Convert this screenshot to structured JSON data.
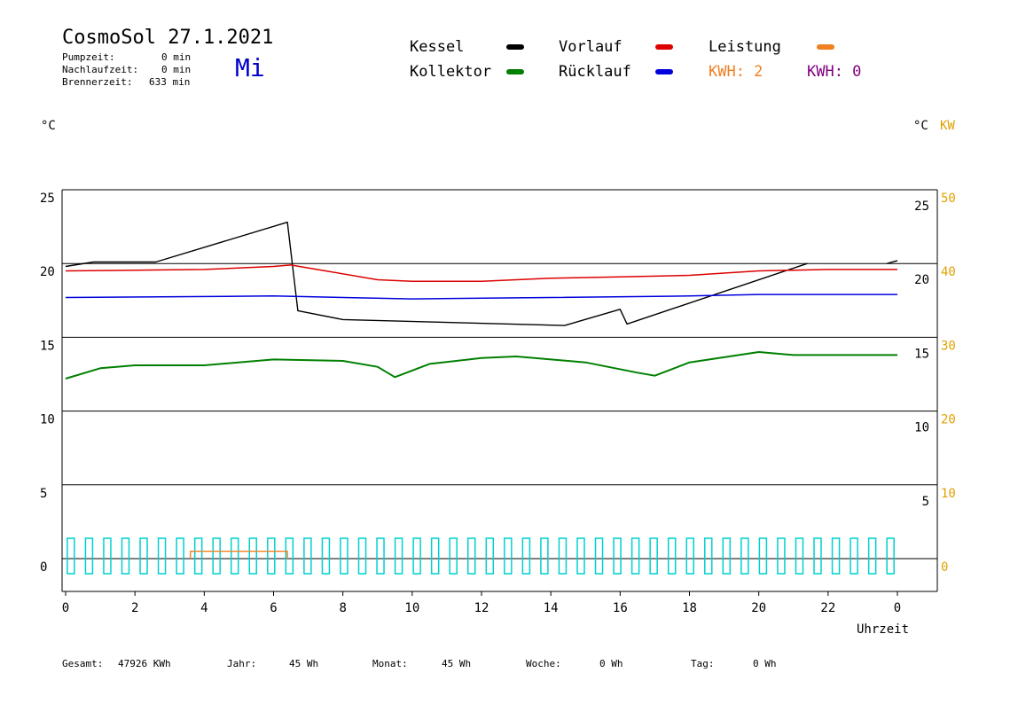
{
  "header": {
    "title": "CosmoSol 27.1.2021",
    "weekday": "Mi",
    "weekday_color": "#0000cc",
    "info": [
      {
        "label": "Pumpzeit:",
        "value": "0 min"
      },
      {
        "label": "Nachlaufzeit:",
        "value": "0 min"
      },
      {
        "label": "Brennerzeit:",
        "value": "633 min"
      }
    ]
  },
  "legend": {
    "kessel": {
      "label": "Kessel",
      "color": "#000000"
    },
    "kollektor": {
      "label": "Kollektor",
      "color": "#008000"
    },
    "vorlauf": {
      "label": "Vorlauf",
      "color": "#dd0000"
    },
    "ruecklauf": {
      "label": "Rücklauf",
      "color": "#0000dd"
    },
    "leistung": {
      "label": "Leistung",
      "color": "#f08020"
    },
    "kwh_orange": "KWH: 2",
    "kwh_purple": "KWH: 0",
    "kwh_purple_color": "#800080"
  },
  "axes": {
    "left_unit": "°C",
    "right_unit_c": "°C",
    "right_unit_kw": "KW",
    "x_label": "Uhrzeit",
    "left_ticks": [
      "25",
      "20",
      "15",
      "10",
      "5",
      "0"
    ],
    "right_c_ticks": [
      "25",
      "20",
      "15",
      "10",
      "5"
    ],
    "right_kw_ticks": [
      "50",
      "40",
      "30",
      "20",
      "10",
      "0"
    ],
    "x_ticks": [
      "0",
      "2",
      "4",
      "6",
      "8",
      "10",
      "12",
      "14",
      "16",
      "18",
      "20",
      "22",
      "0"
    ]
  },
  "footer": [
    {
      "label": "Gesamt:",
      "value": "47926 KWh"
    },
    {
      "label": "Jahr:",
      "value": "45 Wh"
    },
    {
      "label": "Monat:",
      "value": "45 Wh"
    },
    {
      "label": "Woche:",
      "value": "0 Wh"
    },
    {
      "label": "Tag:",
      "value": "0 Wh"
    }
  ],
  "chart_data": {
    "type": "line",
    "xlabel": "Uhrzeit",
    "ylabel": "°C",
    "xlim": [
      0,
      24
    ],
    "ylim": [
      0,
      25
    ],
    "y2lim": [
      0,
      50
    ],
    "y2label": "KW",
    "grid": "horizontal",
    "series": [
      {
        "name": "Kessel",
        "color": "#000000",
        "step": true,
        "x": [
          0,
          0.8,
          2.6,
          6.4,
          6.7,
          8.0,
          14.4,
          16.0,
          16.2,
          21.4
        ],
        "y": [
          19.8,
          20.1,
          20.1,
          22.8,
          16.8,
          16.2,
          15.8,
          16.9,
          15.9,
          20.0
        ],
        "gaps": [
          [
            21.4,
            23.7
          ]
        ],
        "tail": {
          "x": [
            23.7,
            24.0
          ],
          "y": [
            20.0,
            20.2
          ]
        }
      },
      {
        "name": "Vorlauf",
        "color": "#dd0000",
        "x": [
          0,
          4,
          6,
          6.5,
          7.5,
          9,
          10,
          12,
          14,
          16,
          18,
          20,
          22,
          24
        ],
        "y": [
          19.5,
          19.6,
          19.8,
          19.9,
          19.5,
          18.9,
          18.8,
          18.8,
          19.0,
          19.1,
          19.2,
          19.5,
          19.6,
          19.6
        ]
      },
      {
        "name": "Rücklauf",
        "color": "#0000dd",
        "x": [
          0,
          6,
          10,
          14,
          18,
          20,
          24
        ],
        "y": [
          17.7,
          17.8,
          17.6,
          17.7,
          17.8,
          17.9,
          17.9
        ]
      },
      {
        "name": "Kollektor",
        "color": "#008000",
        "x": [
          0,
          1,
          2,
          4,
          6,
          8,
          9,
          9.5,
          10.5,
          12,
          13,
          15,
          16.5,
          17,
          18,
          20,
          21,
          22,
          24
        ],
        "y": [
          12.2,
          12.9,
          13.1,
          13.1,
          13.5,
          13.4,
          13.0,
          12.3,
          13.2,
          13.6,
          13.7,
          13.3,
          12.6,
          12.4,
          13.3,
          14.0,
          13.8,
          13.8,
          13.8
        ]
      },
      {
        "name": "Leistung",
        "color": "#f08020",
        "axis": "right",
        "x": [
          3.6,
          3.6,
          6.4,
          6.4
        ],
        "y": [
          0,
          1.0,
          1.0,
          0
        ]
      }
    ],
    "pump_markers": {
      "color": "#00d0d0",
      "count": 46,
      "x_start": 0.15,
      "x_end": 23.8,
      "height_c": 1.2
    }
  }
}
